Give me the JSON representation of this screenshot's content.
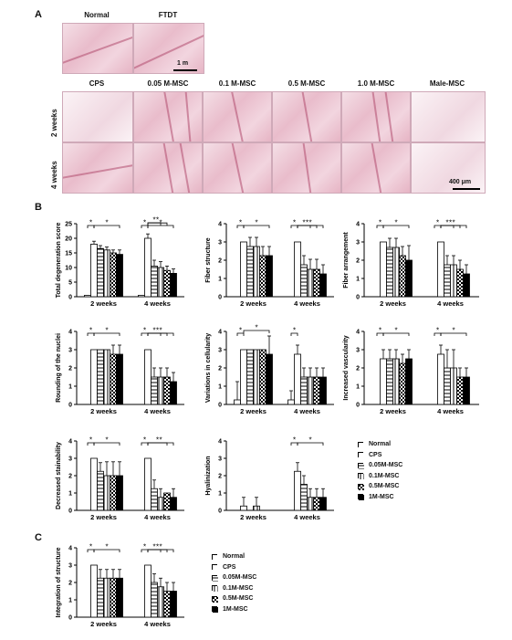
{
  "panel_labels": {
    "a": "A",
    "b": "B",
    "c": "C"
  },
  "histology": {
    "top_labels": [
      "Normal",
      "FTDT"
    ],
    "column_labels": [
      "CPS",
      "0.05 M-MSC",
      "0.1 M-MSC",
      "0.5 M-MSC",
      "1.0 M-MSC",
      "Male-MSC"
    ],
    "row_labels": [
      "2 weeks",
      "4 weeks"
    ],
    "scale_top": "1 m",
    "scale_bottom": "400 μm"
  },
  "legend": [
    "Normal",
    "CPS",
    "0.05M-MSC",
    "0.1M-MSC",
    "0.5M-MSC",
    "1M-MSC"
  ],
  "sig_marker": "*",
  "chart_data": [
    {
      "type": "bar",
      "ylabel": "Total degeneration score",
      "ylim": [
        0,
        25
      ],
      "yticks": [
        0,
        5,
        10,
        15,
        20,
        25
      ],
      "categories": [
        "2 weeks",
        "4 weeks"
      ],
      "series": [
        {
          "name": "Normal",
          "values": [
            0.5,
            0.5
          ],
          "errors": [
            0,
            0
          ]
        },
        {
          "name": "CPS",
          "values": [
            18,
            20
          ],
          "errors": [
            1,
            1.5
          ]
        },
        {
          "name": "0.05M-MSC",
          "values": [
            16.5,
            10.5
          ],
          "errors": [
            1,
            2
          ]
        },
        {
          "name": "0.1M-MSC",
          "values": [
            16,
            10
          ],
          "errors": [
            1,
            2
          ]
        },
        {
          "name": "0.5M-MSC",
          "values": [
            15,
            9
          ],
          "errors": [
            1,
            1.5
          ]
        },
        {
          "name": "1M-MSC",
          "values": [
            14.5,
            8
          ],
          "errors": [
            1.5,
            1.5
          ]
        }
      ]
    },
    {
      "type": "bar",
      "ylabel": "Fiber structure",
      "ylim": [
        0,
        4
      ],
      "yticks": [
        0,
        1,
        2,
        3,
        4
      ],
      "categories": [
        "2 weeks",
        "4 weeks"
      ],
      "series": [
        {
          "name": "Normal",
          "values": [
            0,
            0
          ],
          "errors": [
            0,
            0
          ]
        },
        {
          "name": "CPS",
          "values": [
            3,
            3
          ],
          "errors": [
            0,
            0
          ]
        },
        {
          "name": "0.05M-MSC",
          "values": [
            2.75,
            1.75
          ],
          "errors": [
            0.5,
            0.5
          ]
        },
        {
          "name": "0.1M-MSC",
          "values": [
            2.75,
            1.5
          ],
          "errors": [
            0.5,
            0.55
          ]
        },
        {
          "name": "0.5M-MSC",
          "values": [
            2.25,
            1.5
          ],
          "errors": [
            0.5,
            0.55
          ]
        },
        {
          "name": "1M-MSC",
          "values": [
            2.25,
            1.25
          ],
          "errors": [
            0.5,
            0.5
          ]
        }
      ]
    },
    {
      "type": "bar",
      "ylabel": "Fiber arrangement",
      "ylim": [
        0,
        4
      ],
      "yticks": [
        0,
        1,
        2,
        3,
        4
      ],
      "categories": [
        "2 weeks",
        "4 weeks"
      ],
      "series": [
        {
          "name": "Normal",
          "values": [
            0,
            0
          ],
          "errors": [
            0,
            0
          ]
        },
        {
          "name": "CPS",
          "values": [
            3,
            3
          ],
          "errors": [
            0,
            0
          ]
        },
        {
          "name": "0.05M-MSC",
          "values": [
            2.7,
            1.75
          ],
          "errors": [
            0.5,
            0.5
          ]
        },
        {
          "name": "0.1M-MSC",
          "values": [
            2.7,
            1.75
          ],
          "errors": [
            0.5,
            0.5
          ]
        },
        {
          "name": "0.5M-MSC",
          "values": [
            2.25,
            1.5
          ],
          "errors": [
            0.5,
            0.5
          ]
        },
        {
          "name": "1M-MSC",
          "values": [
            2,
            1.25
          ],
          "errors": [
            0.8,
            0.5
          ]
        }
      ]
    },
    {
      "type": "bar",
      "ylabel": "Rounding of the nuclei",
      "ylim": [
        0,
        4
      ],
      "yticks": [
        0,
        1,
        2,
        3,
        4
      ],
      "categories": [
        "2 weeks",
        "4 weeks"
      ],
      "series": [
        {
          "name": "Normal",
          "values": [
            0,
            0
          ],
          "errors": [
            0,
            0
          ]
        },
        {
          "name": "CPS",
          "values": [
            3,
            3
          ],
          "errors": [
            0,
            0
          ]
        },
        {
          "name": "0.05M-MSC",
          "values": [
            3,
            1.5
          ],
          "errors": [
            0,
            0.5
          ]
        },
        {
          "name": "0.1M-MSC",
          "values": [
            3,
            1.5
          ],
          "errors": [
            0,
            0.5
          ]
        },
        {
          "name": "0.5M-MSC",
          "values": [
            2.75,
            1.5
          ],
          "errors": [
            0.5,
            0.5
          ]
        },
        {
          "name": "1M-MSC",
          "values": [
            2.75,
            1.25
          ],
          "errors": [
            0.5,
            0.5
          ]
        }
      ]
    },
    {
      "type": "bar",
      "ylabel": "Variations in cellularity",
      "ylim": [
        0,
        4
      ],
      "yticks": [
        0,
        1,
        2,
        3,
        4
      ],
      "categories": [
        "2 weeks",
        "4 weeks"
      ],
      "series": [
        {
          "name": "Normal",
          "values": [
            0.25,
            0.25
          ],
          "errors": [
            1,
            0.5
          ]
        },
        {
          "name": "CPS",
          "values": [
            3,
            2.75
          ],
          "errors": [
            0,
            0.5
          ]
        },
        {
          "name": "0.05M-MSC",
          "values": [
            3,
            1.5
          ],
          "errors": [
            0,
            0.5
          ]
        },
        {
          "name": "0.1M-MSC",
          "values": [
            3,
            1.5
          ],
          "errors": [
            0,
            0.5
          ]
        },
        {
          "name": "0.5M-MSC",
          "values": [
            3,
            1.5
          ],
          "errors": [
            0,
            0.5
          ]
        },
        {
          "name": "1M-MSC",
          "values": [
            2.75,
            1.5
          ],
          "errors": [
            1,
            0.5
          ]
        }
      ]
    },
    {
      "type": "bar",
      "ylabel": "Increased vascularity",
      "ylim": [
        0,
        4
      ],
      "yticks": [
        0,
        1,
        2,
        3,
        4
      ],
      "categories": [
        "2 weeks",
        "4 weeks"
      ],
      "series": [
        {
          "name": "Normal",
          "values": [
            0,
            0
          ],
          "errors": [
            0,
            0
          ]
        },
        {
          "name": "CPS",
          "values": [
            2.5,
            2.75
          ],
          "errors": [
            0.5,
            0.5
          ]
        },
        {
          "name": "0.05M-MSC",
          "values": [
            2.5,
            2
          ],
          "errors": [
            0.5,
            1
          ]
        },
        {
          "name": "0.1M-MSC",
          "values": [
            2.5,
            2
          ],
          "errors": [
            0.5,
            1
          ]
        },
        {
          "name": "0.5M-MSC",
          "values": [
            2.25,
            1.5
          ],
          "errors": [
            0.5,
            0.5
          ]
        },
        {
          "name": "1M-MSC",
          "values": [
            2.5,
            1.5
          ],
          "errors": [
            0.5,
            0.5
          ]
        }
      ]
    },
    {
      "type": "bar",
      "ylabel": "Decreased stainability",
      "ylim": [
        0,
        4
      ],
      "yticks": [
        0,
        1,
        2,
        3,
        4
      ],
      "categories": [
        "2 weeks",
        "4 weeks"
      ],
      "series": [
        {
          "name": "Normal",
          "values": [
            0,
            0
          ],
          "errors": [
            0,
            0
          ]
        },
        {
          "name": "CPS",
          "values": [
            3,
            3
          ],
          "errors": [
            0,
            0
          ]
        },
        {
          "name": "0.05M-MSC",
          "values": [
            2.25,
            1.25
          ],
          "errors": [
            0.5,
            0.5
          ]
        },
        {
          "name": "0.1M-MSC",
          "values": [
            2,
            0.75
          ],
          "errors": [
            0.8,
            0.5
          ]
        },
        {
          "name": "0.5M-MSC",
          "values": [
            2,
            1
          ],
          "errors": [
            0.8,
            0
          ]
        },
        {
          "name": "1M-MSC",
          "values": [
            2,
            0.75
          ],
          "errors": [
            0.8,
            0.5
          ]
        }
      ]
    },
    {
      "type": "bar",
      "ylabel": "Hyalinization",
      "ylim": [
        0,
        4
      ],
      "yticks": [
        0,
        1,
        2,
        3,
        4
      ],
      "categories": [
        "2 weeks",
        "4 weeks"
      ],
      "series": [
        {
          "name": "Normal",
          "values": [
            0,
            0
          ],
          "errors": [
            0,
            0
          ]
        },
        {
          "name": "CPS",
          "values": [
            0.25,
            2.25
          ],
          "errors": [
            0.5,
            0.5
          ]
        },
        {
          "name": "0.05M-MSC",
          "values": [
            0,
            1.5
          ],
          "errors": [
            0,
            0.5
          ]
        },
        {
          "name": "0.1M-MSC",
          "values": [
            0.25,
            0.75
          ],
          "errors": [
            0.5,
            0.5
          ]
        },
        {
          "name": "0.5M-MSC",
          "values": [
            0,
            0.75
          ],
          "errors": [
            0,
            0.5
          ]
        },
        {
          "name": "1M-MSC",
          "values": [
            0,
            0.75
          ],
          "errors": [
            0,
            0.5
          ]
        }
      ]
    },
    {
      "type": "bar",
      "ylabel": "Integration of structure",
      "ylim": [
        0,
        4
      ],
      "yticks": [
        0,
        1,
        2,
        3,
        4
      ],
      "categories": [
        "2 weeks",
        "4 weeks"
      ],
      "series": [
        {
          "name": "Normal",
          "values": [
            0,
            0
          ],
          "errors": [
            0,
            0
          ]
        },
        {
          "name": "CPS",
          "values": [
            3,
            3
          ],
          "errors": [
            0,
            0
          ]
        },
        {
          "name": "0.05M-MSC",
          "values": [
            2.25,
            2
          ],
          "errors": [
            0.5,
            0.5
          ]
        },
        {
          "name": "0.1M-MSC",
          "values": [
            2.25,
            1.75
          ],
          "errors": [
            0.5,
            0.5
          ]
        },
        {
          "name": "0.5M-MSC",
          "values": [
            2.25,
            1.5
          ],
          "errors": [
            0.5,
            0.5
          ]
        },
        {
          "name": "1M-MSC",
          "values": [
            2.25,
            1.5
          ],
          "errors": [
            0.5,
            0.5
          ]
        }
      ]
    }
  ]
}
